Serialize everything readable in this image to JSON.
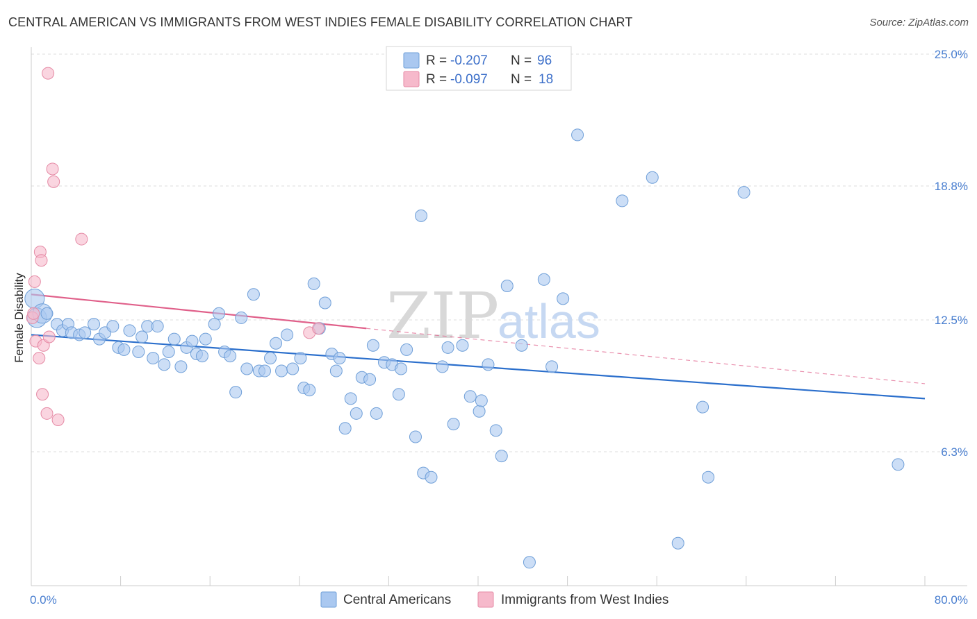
{
  "title": "CENTRAL AMERICAN VS IMMIGRANTS FROM WEST INDIES FEMALE DISABILITY CORRELATION CHART",
  "source": "Source: ZipAtlas.com",
  "watermark": {
    "zip": "ZIP",
    "atlas": "atlas"
  },
  "colors": {
    "blue_fill": "#aac8f0",
    "blue_stroke": "#6f9fd8",
    "blue_line": "#2b6fcc",
    "pink_fill": "#f6b9cb",
    "pink_stroke": "#e58aa5",
    "pink_line": "#e0608a",
    "tick_text": "#4a7fd0",
    "grid": "#dddddd"
  },
  "legend": {
    "rows": [
      {
        "r_label": "R =",
        "r_value": "-0.207",
        "n_label": "N =",
        "n_value": "96"
      },
      {
        "r_label": "R =",
        "r_value": "-0.097",
        "n_label": "N =",
        "n_value": "18"
      }
    ]
  },
  "chart_data": {
    "type": "scatter",
    "title": "CENTRAL AMERICAN VS IMMIGRANTS FROM WEST INDIES FEMALE DISABILITY CORRELATION CHART",
    "xlabel": "",
    "ylabel": "Female Disability",
    "xlim": [
      0,
      80
    ],
    "ylim": [
      0,
      25.0
    ],
    "x_tick_labels": [
      "0.0%",
      "80.0%"
    ],
    "y_ticks": [
      6.3,
      12.5,
      18.8,
      25.0
    ],
    "y_tick_labels": [
      "6.3%",
      "12.5%",
      "18.8%",
      "25.0%"
    ],
    "grid": true,
    "legend_position": "top-center",
    "series": [
      {
        "name": "Central Americans",
        "r": -0.207,
        "n": 96,
        "trend": {
          "x": [
            0,
            80
          ],
          "y": [
            11.8,
            8.8
          ]
        },
        "points": [
          {
            "x": 0.3,
            "y": 13.5,
            "big": true
          },
          {
            "x": 0.5,
            "y": 12.6,
            "big": true
          },
          {
            "x": 1.0,
            "y": 12.8,
            "big": true
          },
          {
            "x": 1.4,
            "y": 12.8
          },
          {
            "x": 2.3,
            "y": 12.3
          },
          {
            "x": 2.8,
            "y": 12.0
          },
          {
            "x": 3.3,
            "y": 12.3
          },
          {
            "x": 3.6,
            "y": 11.9
          },
          {
            "x": 4.3,
            "y": 11.8
          },
          {
            "x": 4.8,
            "y": 11.9
          },
          {
            "x": 5.6,
            "y": 12.3
          },
          {
            "x": 6.1,
            "y": 11.6
          },
          {
            "x": 6.6,
            "y": 11.9
          },
          {
            "x": 7.3,
            "y": 12.2
          },
          {
            "x": 7.8,
            "y": 11.2
          },
          {
            "x": 8.3,
            "y": 11.1
          },
          {
            "x": 8.8,
            "y": 12.0
          },
          {
            "x": 9.6,
            "y": 11.0
          },
          {
            "x": 9.9,
            "y": 11.7
          },
          {
            "x": 10.4,
            "y": 12.2
          },
          {
            "x": 10.9,
            "y": 10.7
          },
          {
            "x": 11.3,
            "y": 12.2
          },
          {
            "x": 11.9,
            "y": 10.4
          },
          {
            "x": 12.3,
            "y": 11.0
          },
          {
            "x": 12.8,
            "y": 11.6
          },
          {
            "x": 13.4,
            "y": 10.3
          },
          {
            "x": 13.9,
            "y": 11.2
          },
          {
            "x": 14.4,
            "y": 11.5
          },
          {
            "x": 14.8,
            "y": 10.9
          },
          {
            "x": 15.3,
            "y": 10.8
          },
          {
            "x": 15.6,
            "y": 11.6
          },
          {
            "x": 16.4,
            "y": 12.3
          },
          {
            "x": 16.8,
            "y": 12.8
          },
          {
            "x": 17.3,
            "y": 11.0
          },
          {
            "x": 17.8,
            "y": 10.8
          },
          {
            "x": 18.3,
            "y": 9.1
          },
          {
            "x": 18.8,
            "y": 12.6
          },
          {
            "x": 19.3,
            "y": 10.2
          },
          {
            "x": 19.9,
            "y": 13.7
          },
          {
            "x": 20.4,
            "y": 10.1
          },
          {
            "x": 20.9,
            "y": 10.1
          },
          {
            "x": 21.4,
            "y": 10.7
          },
          {
            "x": 21.9,
            "y": 11.4
          },
          {
            "x": 22.4,
            "y": 10.1
          },
          {
            "x": 22.9,
            "y": 11.8
          },
          {
            "x": 23.4,
            "y": 10.2
          },
          {
            "x": 24.1,
            "y": 10.7
          },
          {
            "x": 24.4,
            "y": 9.3
          },
          {
            "x": 24.9,
            "y": 9.2
          },
          {
            "x": 25.3,
            "y": 14.2
          },
          {
            "x": 25.8,
            "y": 12.1
          },
          {
            "x": 26.3,
            "y": 13.3
          },
          {
            "x": 26.9,
            "y": 10.9
          },
          {
            "x": 27.3,
            "y": 10.1
          },
          {
            "x": 27.6,
            "y": 10.7
          },
          {
            "x": 28.1,
            "y": 7.4
          },
          {
            "x": 28.6,
            "y": 8.8
          },
          {
            "x": 29.1,
            "y": 8.1
          },
          {
            "x": 29.6,
            "y": 9.8
          },
          {
            "x": 30.3,
            "y": 9.7
          },
          {
            "x": 30.6,
            "y": 11.3
          },
          {
            "x": 30.9,
            "y": 8.1
          },
          {
            "x": 31.6,
            "y": 10.5
          },
          {
            "x": 32.3,
            "y": 10.4
          },
          {
            "x": 32.9,
            "y": 9.0
          },
          {
            "x": 33.1,
            "y": 10.2
          },
          {
            "x": 33.6,
            "y": 11.1
          },
          {
            "x": 34.4,
            "y": 7.0
          },
          {
            "x": 34.9,
            "y": 17.4
          },
          {
            "x": 35.1,
            "y": 5.3
          },
          {
            "x": 35.8,
            "y": 5.1
          },
          {
            "x": 36.8,
            "y": 10.3
          },
          {
            "x": 37.3,
            "y": 11.2
          },
          {
            "x": 37.8,
            "y": 7.6
          },
          {
            "x": 38.6,
            "y": 11.3
          },
          {
            "x": 39.3,
            "y": 8.9
          },
          {
            "x": 40.1,
            "y": 8.2
          },
          {
            "x": 40.3,
            "y": 8.7
          },
          {
            "x": 40.9,
            "y": 10.4
          },
          {
            "x": 41.6,
            "y": 7.3
          },
          {
            "x": 42.1,
            "y": 6.1
          },
          {
            "x": 42.6,
            "y": 14.1
          },
          {
            "x": 43.9,
            "y": 11.3
          },
          {
            "x": 44.6,
            "y": 1.1
          },
          {
            "x": 45.9,
            "y": 14.4
          },
          {
            "x": 46.6,
            "y": 10.3
          },
          {
            "x": 47.6,
            "y": 13.5
          },
          {
            "x": 48.9,
            "y": 21.2
          },
          {
            "x": 52.9,
            "y": 18.1
          },
          {
            "x": 55.6,
            "y": 19.2
          },
          {
            "x": 57.9,
            "y": 2.0
          },
          {
            "x": 60.1,
            "y": 8.4
          },
          {
            "x": 60.6,
            "y": 5.1
          },
          {
            "x": 63.8,
            "y": 18.5
          },
          {
            "x": 77.6,
            "y": 5.7
          }
        ]
      },
      {
        "name": "Immigrants from West Indies",
        "r": -0.097,
        "n": 18,
        "trend": {
          "x": [
            0,
            30
          ],
          "y": [
            13.7,
            12.1
          ],
          "dashed_to": {
            "x": 80,
            "y": 9.5
          }
        },
        "points": [
          {
            "x": 0.1,
            "y": 12.6
          },
          {
            "x": 0.3,
            "y": 14.3
          },
          {
            "x": 0.4,
            "y": 11.5
          },
          {
            "x": 0.7,
            "y": 10.7
          },
          {
            "x": 0.8,
            "y": 15.7
          },
          {
            "x": 0.9,
            "y": 15.3
          },
          {
            "x": 1.0,
            "y": 9.0
          },
          {
            "x": 1.1,
            "y": 11.3
          },
          {
            "x": 1.4,
            "y": 8.1
          },
          {
            "x": 1.5,
            "y": 24.1
          },
          {
            "x": 1.6,
            "y": 11.7
          },
          {
            "x": 1.9,
            "y": 19.6
          },
          {
            "x": 2.0,
            "y": 19.0
          },
          {
            "x": 2.4,
            "y": 7.8
          },
          {
            "x": 4.5,
            "y": 16.3
          },
          {
            "x": 24.9,
            "y": 11.9
          },
          {
            "x": 25.7,
            "y": 12.1
          },
          {
            "x": 0.2,
            "y": 12.8
          }
        ]
      }
    ]
  }
}
